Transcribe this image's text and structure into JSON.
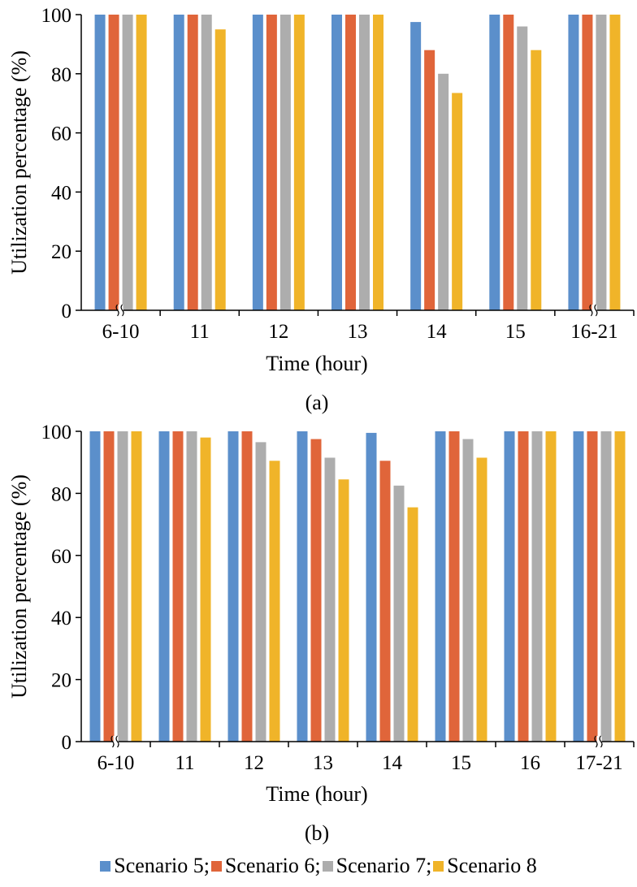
{
  "chart_data": [
    {
      "type": "bar",
      "panel_label": "(a)",
      "xlabel": "Time (hour)",
      "ylabel": "Utilization percentage (%)",
      "ylim": [
        0,
        100
      ],
      "yticks": [
        0,
        20,
        40,
        60,
        80,
        100
      ],
      "axis_breaks": [
        "6-10",
        "16-21"
      ],
      "categories": [
        "6-10",
        "11",
        "12",
        "13",
        "14",
        "15",
        "16-21"
      ],
      "series": [
        {
          "name": "Scenario 5",
          "values": [
            100,
            100,
            100,
            100,
            97.5,
            100,
            100
          ]
        },
        {
          "name": "Scenario 6",
          "values": [
            100,
            100,
            100,
            100,
            88,
            100,
            100
          ]
        },
        {
          "name": "Scenario 7",
          "values": [
            100,
            100,
            100,
            100,
            80,
            96,
            100
          ]
        },
        {
          "name": "Scenario 8",
          "values": [
            100,
            95,
            100,
            100,
            73.5,
            88,
            100
          ]
        }
      ]
    },
    {
      "type": "bar",
      "panel_label": "(b)",
      "xlabel": "Time (hour)",
      "ylabel": "Utilization percentage (%)",
      "ylim": [
        0,
        100
      ],
      "yticks": [
        0,
        20,
        40,
        60,
        80,
        100
      ],
      "axis_breaks": [
        "6-10",
        "17-21"
      ],
      "categories": [
        "6-10",
        "11",
        "12",
        "13",
        "14",
        "15",
        "16",
        "17-21"
      ],
      "series": [
        {
          "name": "Scenario 5",
          "values": [
            100,
            100,
            100,
            100,
            99.5,
            100,
            100,
            100
          ]
        },
        {
          "name": "Scenario 6",
          "values": [
            100,
            100,
            100,
            97.5,
            90.5,
            100,
            100,
            100
          ]
        },
        {
          "name": "Scenario 7",
          "values": [
            100,
            100,
            96.5,
            91.5,
            82.5,
            97.5,
            100,
            100
          ]
        },
        {
          "name": "Scenario 8",
          "values": [
            100,
            98,
            90.5,
            84.5,
            75.5,
            91.5,
            100,
            100
          ]
        }
      ]
    }
  ],
  "legend": {
    "items": [
      {
        "label": "Scenario 5;",
        "color": "#5b8fcb"
      },
      {
        "label": "Scenario 6;",
        "color": "#e0653a"
      },
      {
        "label": "Scenario 7;",
        "color": "#adadad"
      },
      {
        "label": "Scenario 8",
        "color": "#f0b429"
      }
    ]
  },
  "colors": [
    "#5b8fcb",
    "#e0653a",
    "#adadad",
    "#f0b429"
  ]
}
